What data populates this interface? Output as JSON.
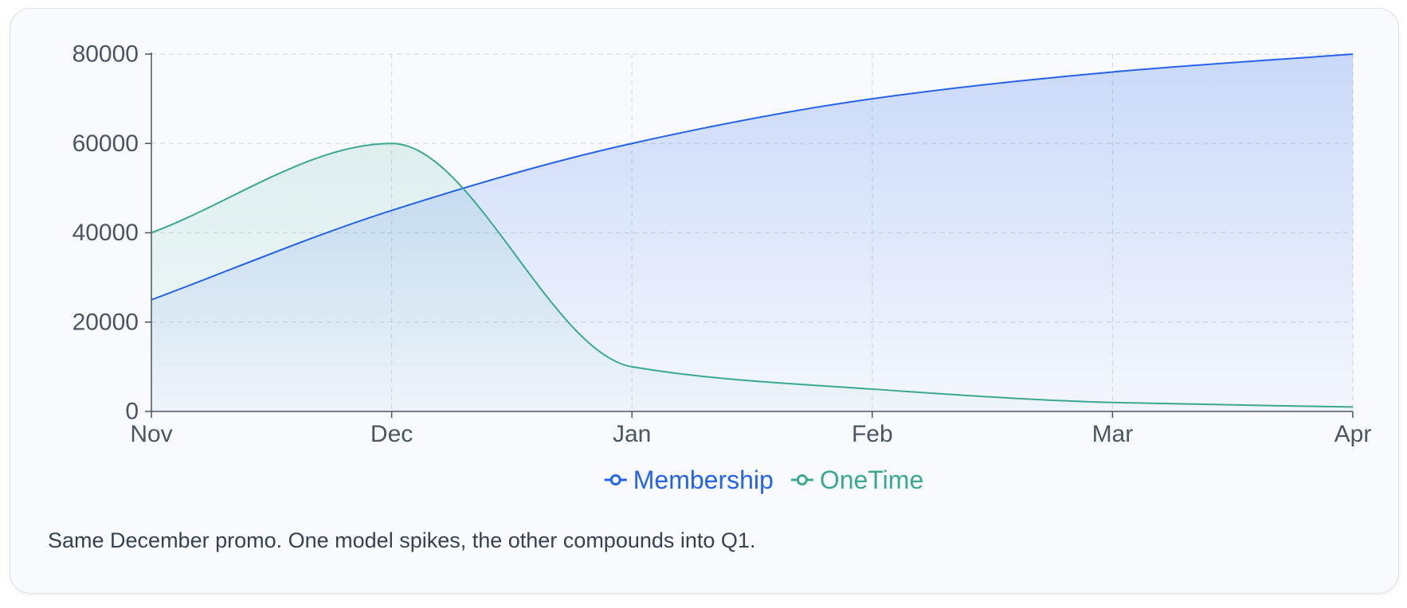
{
  "chart_data": {
    "type": "area",
    "categories": [
      "Nov",
      "Dec",
      "Jan",
      "Feb",
      "Mar",
      "Apr"
    ],
    "series": [
      {
        "name": "Membership",
        "values": [
          25000,
          45000,
          60000,
          70000,
          76000,
          80000
        ],
        "color": "#2563eb"
      },
      {
        "name": "OneTime",
        "values": [
          40000,
          60000,
          10000,
          5000,
          2000,
          1000
        ],
        "color": "#3aa893"
      }
    ],
    "yticks": [
      0,
      20000,
      40000,
      60000,
      80000
    ],
    "ylim": [
      0,
      80000
    ],
    "grid": true,
    "legend": "bottom-center",
    "smooth": true
  },
  "caption": "Same December promo. One model spikes, the other compounds into Q1."
}
